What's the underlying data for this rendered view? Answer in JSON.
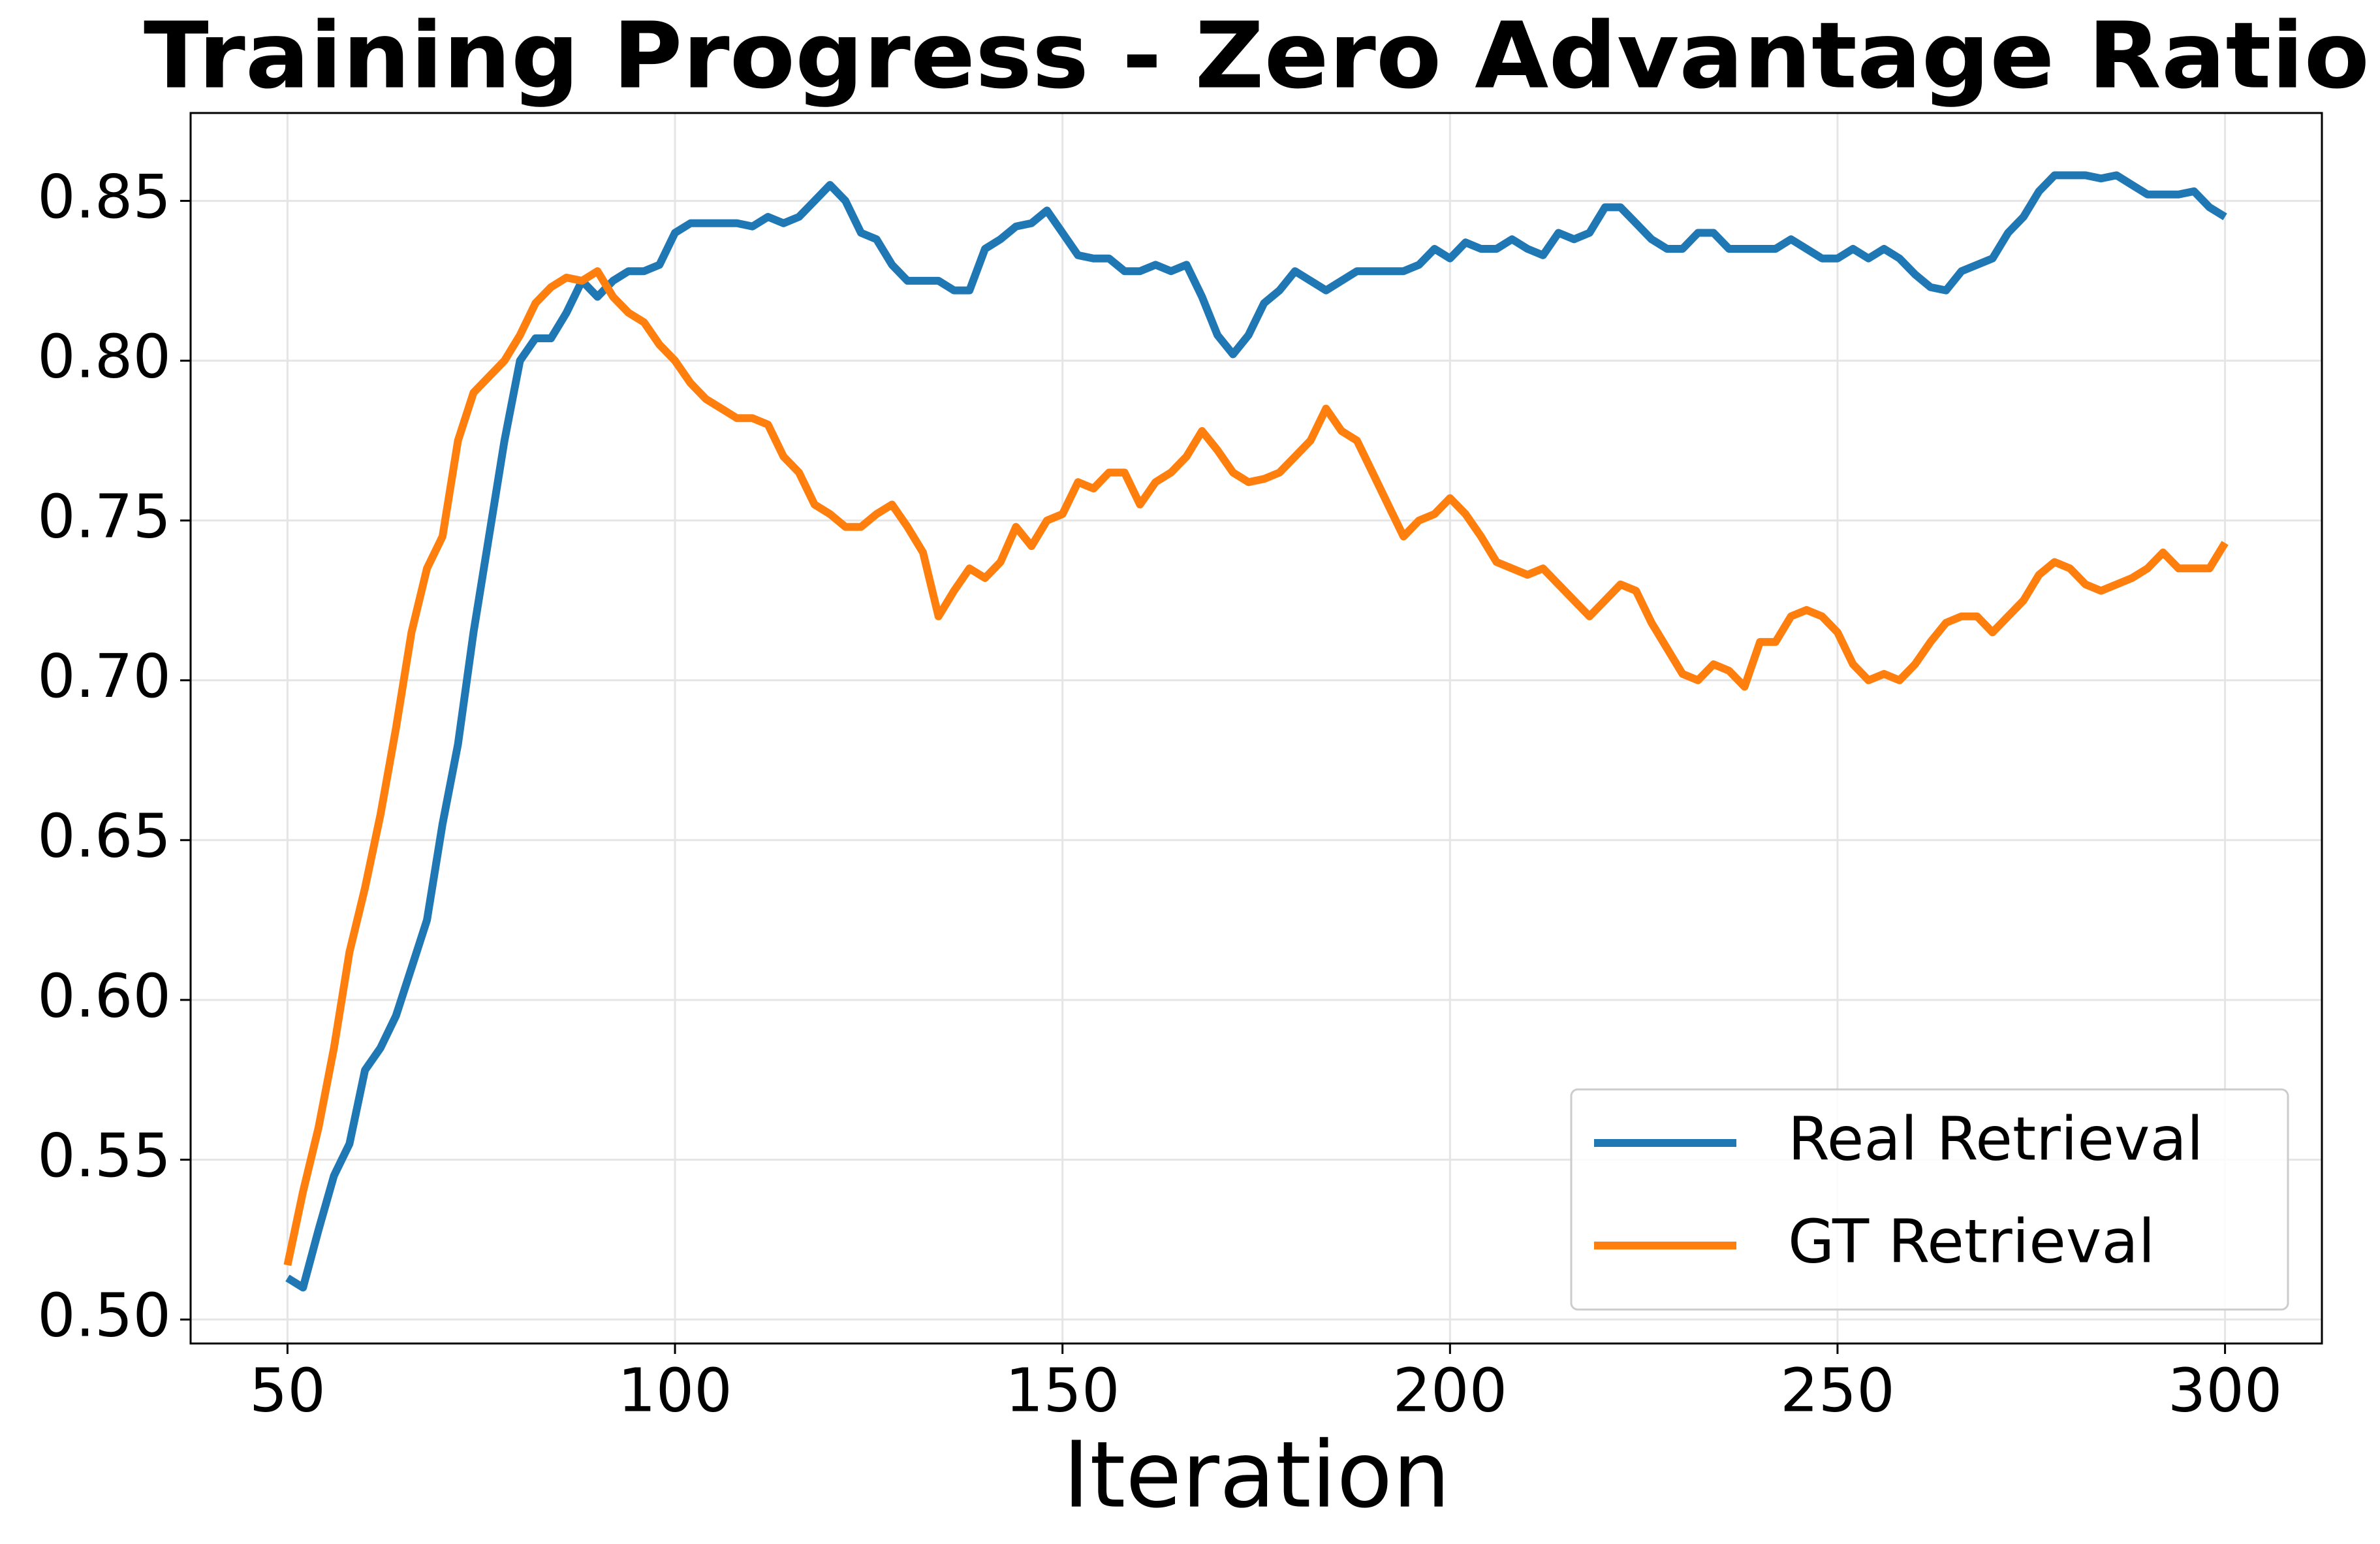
{
  "chart_data": {
    "type": "line",
    "title": "Training Progress - Zero Advantage Ratio",
    "x_label": "Iteration",
    "x": [
      50,
      52,
      54,
      56,
      58,
      60,
      62,
      64,
      66,
      68,
      70,
      72,
      74,
      76,
      78,
      80,
      82,
      84,
      86,
      88,
      90,
      92,
      94,
      96,
      98,
      100,
      102,
      104,
      106,
      108,
      110,
      112,
      114,
      116,
      118,
      120,
      122,
      124,
      126,
      128,
      130,
      132,
      134,
      136,
      138,
      140,
      142,
      144,
      146,
      148,
      150,
      152,
      154,
      156,
      158,
      160,
      162,
      164,
      166,
      168,
      170,
      172,
      174,
      176,
      178,
      180,
      182,
      184,
      186,
      188,
      190,
      192,
      194,
      196,
      198,
      200,
      202,
      204,
      206,
      208,
      210,
      212,
      214,
      216,
      218,
      220,
      222,
      224,
      226,
      228,
      230,
      232,
      234,
      236,
      238,
      240,
      242,
      244,
      246,
      248,
      250,
      252,
      254,
      256,
      258,
      260,
      262,
      264,
      266,
      268,
      270,
      272,
      274,
      276,
      278,
      280,
      282,
      284,
      286,
      288,
      290,
      292,
      294,
      296,
      298,
      300
    ],
    "series": [
      {
        "name": "Real Retrieval",
        "color": "#1f77b4",
        "values": [
          0.513,
          0.51,
          0.528,
          0.545,
          0.555,
          0.578,
          0.585,
          0.595,
          0.61,
          0.625,
          0.655,
          0.68,
          0.715,
          0.745,
          0.775,
          0.8,
          0.807,
          0.807,
          0.815,
          0.825,
          0.82,
          0.825,
          0.828,
          0.828,
          0.83,
          0.84,
          0.843,
          0.843,
          0.843,
          0.843,
          0.842,
          0.845,
          0.843,
          0.845,
          0.85,
          0.855,
          0.85,
          0.84,
          0.838,
          0.83,
          0.825,
          0.825,
          0.825,
          0.822,
          0.822,
          0.835,
          0.838,
          0.842,
          0.843,
          0.847,
          0.84,
          0.833,
          0.832,
          0.832,
          0.828,
          0.828,
          0.83,
          0.828,
          0.83,
          0.82,
          0.808,
          0.802,
          0.808,
          0.818,
          0.822,
          0.828,
          0.825,
          0.822,
          0.825,
          0.828,
          0.828,
          0.828,
          0.828,
          0.83,
          0.835,
          0.832,
          0.837,
          0.835,
          0.835,
          0.838,
          0.835,
          0.833,
          0.84,
          0.838,
          0.84,
          0.848,
          0.848,
          0.843,
          0.838,
          0.835,
          0.835,
          0.84,
          0.84,
          0.835,
          0.835,
          0.835,
          0.835,
          0.838,
          0.835,
          0.832,
          0.832,
          0.835,
          0.832,
          0.835,
          0.832,
          0.827,
          0.823,
          0.822,
          0.828,
          0.83,
          0.832,
          0.84,
          0.845,
          0.853,
          0.858,
          0.858,
          0.858,
          0.857,
          0.858,
          0.855,
          0.852,
          0.852,
          0.852,
          0.853,
          0.848,
          0.845
        ]
      },
      {
        "name": "GT Retrieval",
        "color": "#ff7f0e",
        "values": [
          0.517,
          0.54,
          0.56,
          0.585,
          0.615,
          0.635,
          0.658,
          0.685,
          0.715,
          0.735,
          0.745,
          0.775,
          0.79,
          0.795,
          0.8,
          0.808,
          0.818,
          0.823,
          0.826,
          0.825,
          0.828,
          0.82,
          0.815,
          0.812,
          0.805,
          0.8,
          0.793,
          0.788,
          0.785,
          0.782,
          0.782,
          0.78,
          0.77,
          0.765,
          0.755,
          0.752,
          0.748,
          0.748,
          0.752,
          0.755,
          0.748,
          0.74,
          0.72,
          0.728,
          0.735,
          0.732,
          0.737,
          0.748,
          0.742,
          0.75,
          0.752,
          0.762,
          0.76,
          0.765,
          0.765,
          0.755,
          0.762,
          0.765,
          0.77,
          0.778,
          0.772,
          0.765,
          0.762,
          0.763,
          0.765,
          0.77,
          0.775,
          0.785,
          0.778,
          0.775,
          0.765,
          0.755,
          0.745,
          0.75,
          0.752,
          0.757,
          0.752,
          0.745,
          0.737,
          0.735,
          0.733,
          0.735,
          0.73,
          0.725,
          0.72,
          0.725,
          0.73,
          0.728,
          0.718,
          0.71,
          0.702,
          0.7,
          0.705,
          0.703,
          0.698,
          0.712,
          0.712,
          0.72,
          0.722,
          0.72,
          0.715,
          0.705,
          0.7,
          0.702,
          0.7,
          0.705,
          0.712,
          0.718,
          0.72,
          0.72,
          0.715,
          0.72,
          0.725,
          0.733,
          0.737,
          0.735,
          0.73,
          0.728,
          0.73,
          0.732,
          0.735,
          0.74,
          0.735,
          0.735,
          0.735,
          0.743
        ]
      }
    ],
    "xlim": [
      37.5,
      312.5
    ],
    "xticks": [
      50,
      100,
      150,
      200,
      250,
      300
    ],
    "ylim": [
      0.4925,
      0.8775
    ],
    "yticks": [
      {
        "value": 0.5,
        "label": "0.50"
      },
      0.55,
      {
        "value": 0.6,
        "label": "0.60"
      },
      0.65,
      {
        "value": 0.7,
        "label": "0.70"
      },
      0.75,
      {
        "value": 0.8,
        "label": "0.80"
      },
      0.85
    ],
    "grid": true,
    "legend": "lower right"
  }
}
